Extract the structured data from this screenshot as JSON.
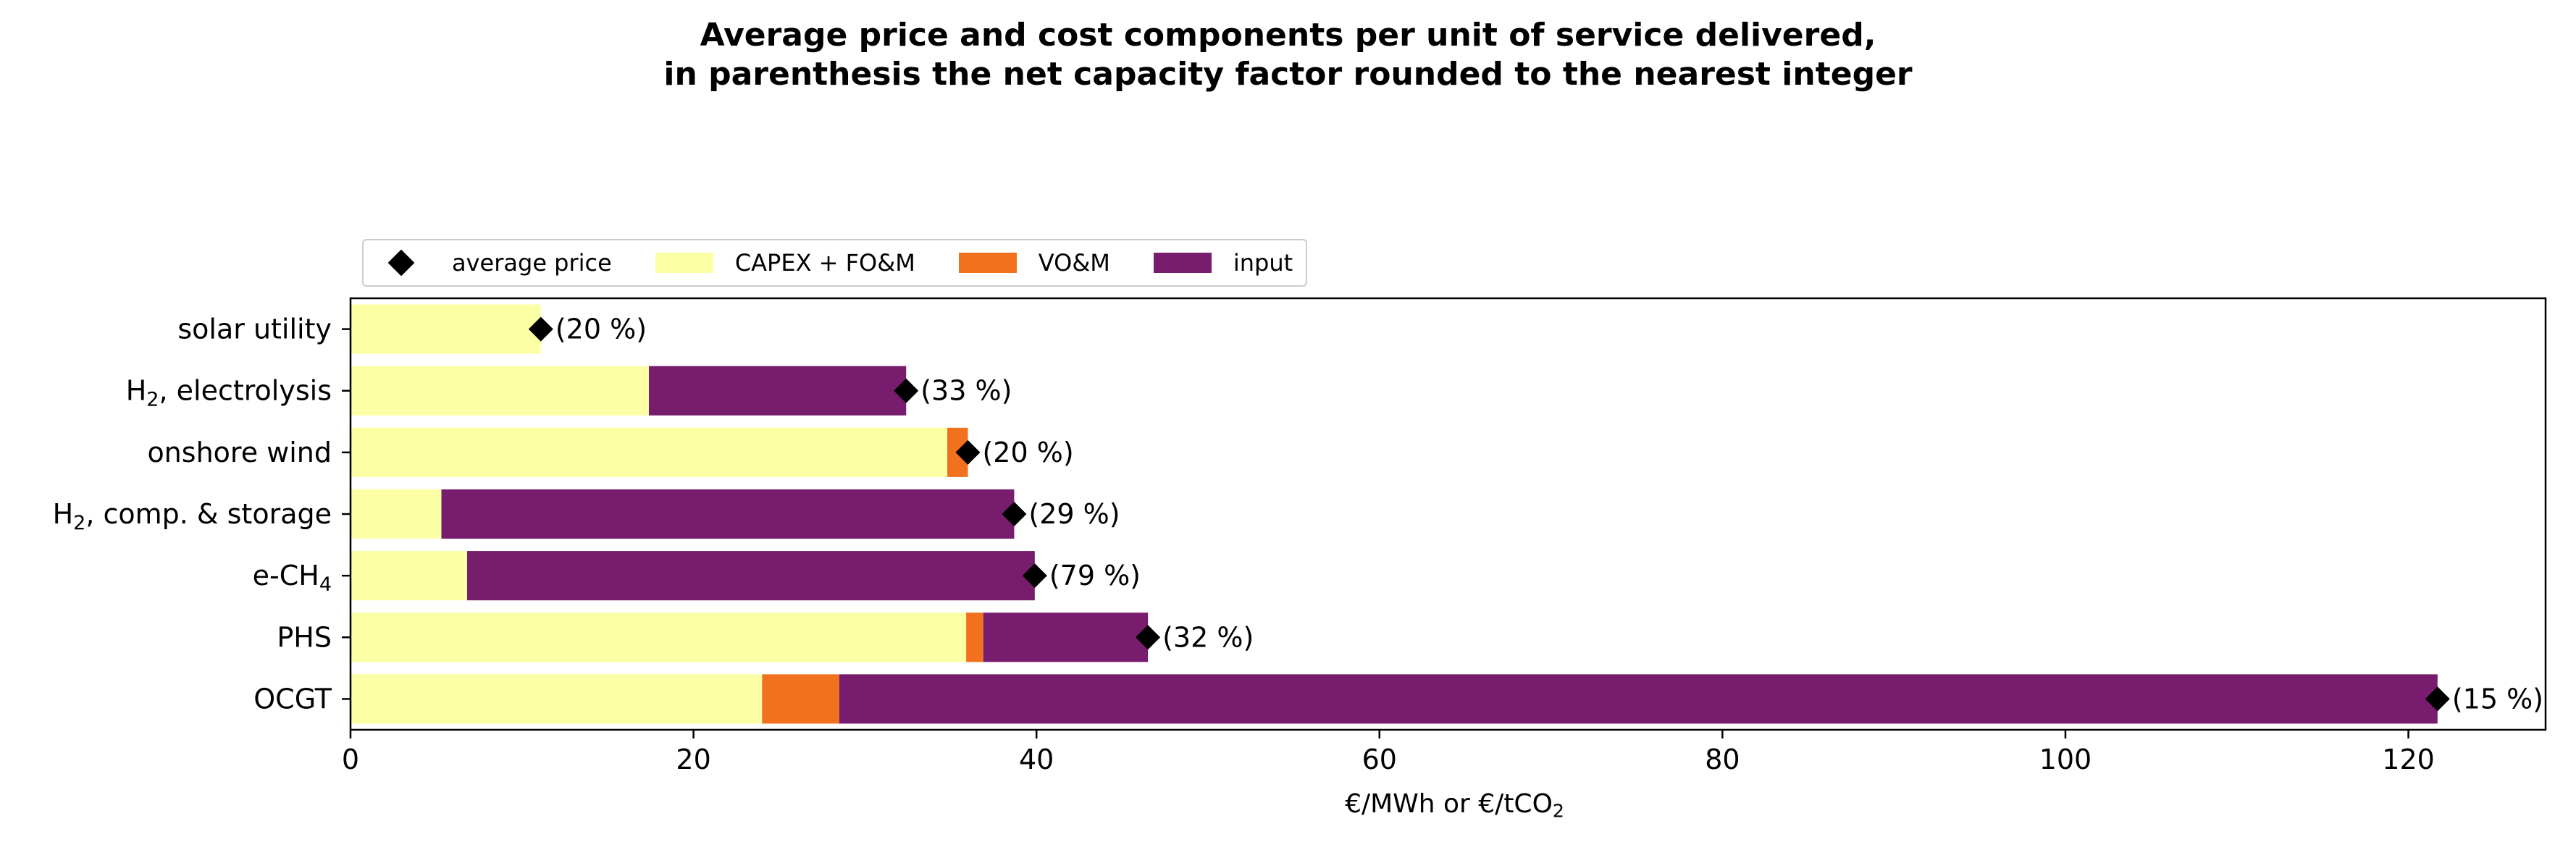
{
  "chart_data": {
    "type": "bar",
    "orientation": "horizontal",
    "stacked": true,
    "title_lines": [
      "Average price and cost components per unit of service delivered,",
      "in parenthesis the net capacity factor rounded to the nearest integer"
    ],
    "xlabel_main": "€/MWh or €/tCO",
    "xlabel_sub": "2",
    "xlim": [
      0,
      128
    ],
    "xticks": [
      0,
      20,
      40,
      60,
      80,
      100,
      120
    ],
    "legend_placement": "top-left, above plot",
    "categories": [
      {
        "main": "solar utility",
        "sub": "",
        "rest": ""
      },
      {
        "main": "H",
        "sub": "2",
        "rest": ", electrolysis"
      },
      {
        "main": "onshore wind",
        "sub": "",
        "rest": ""
      },
      {
        "main": "H",
        "sub": "2",
        "rest": ", comp. & storage"
      },
      {
        "main": "e-CH",
        "sub": "4",
        "rest": ""
      },
      {
        "main": "PHS",
        "sub": "",
        "rest": ""
      },
      {
        "main": "OCGT",
        "sub": "",
        "rest": ""
      }
    ],
    "series": [
      {
        "name": "CAPEX + FO&M",
        "color": "#fcffa4",
        "values": [
          11.1,
          17.4,
          34.8,
          5.3,
          6.8,
          35.9,
          24.0
        ]
      },
      {
        "name": "VO&M",
        "color": "#f1711f",
        "values": [
          0.0,
          0.0,
          1.2,
          0.0,
          0.0,
          1.0,
          4.5
        ]
      },
      {
        "name": "input",
        "color": "#781c6d",
        "values": [
          0.0,
          15.0,
          0.0,
          33.4,
          33.1,
          9.6,
          93.2
        ]
      }
    ],
    "average_price": {
      "name": "average price",
      "color": "#000000",
      "values": [
        11.1,
        32.4,
        36.0,
        38.7,
        39.9,
        46.5,
        121.7
      ]
    },
    "capacity_factor_labels": [
      "(20 %)",
      "(33 %)",
      "(20 %)",
      "(29 %)",
      "(79 %)",
      "(32 %)",
      "(15 %)"
    ]
  }
}
